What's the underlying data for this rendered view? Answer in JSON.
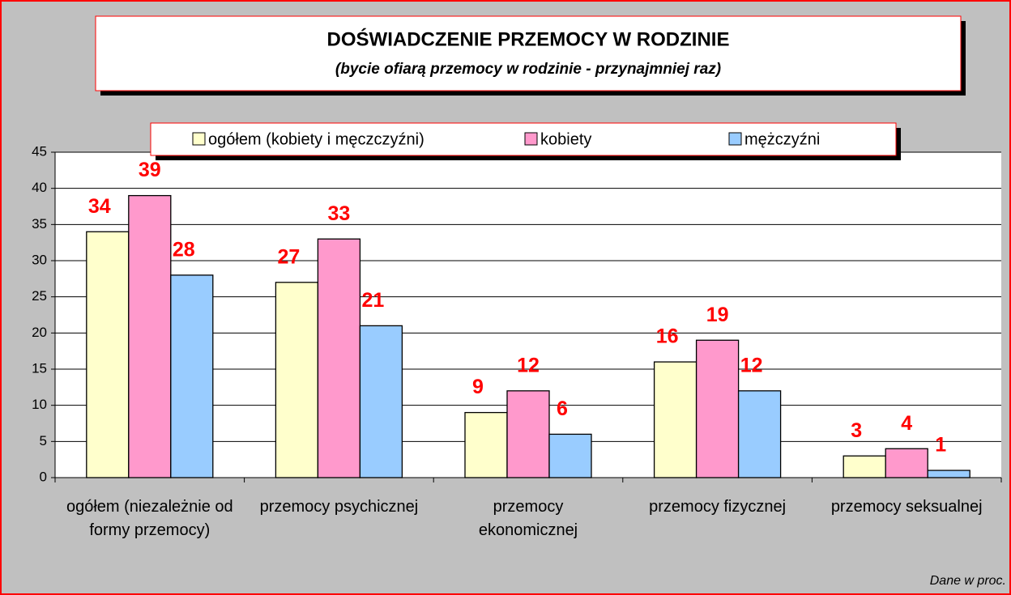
{
  "chart_data": {
    "type": "bar",
    "title": "DOŚWIADCZENIE PRZEMOCY W RODZINIE",
    "subtitle": "(bycie ofiarą przemocy w rodzinie - przynajmniej raz)",
    "categories": [
      "ogółem (niezależnie od formy przemocy)",
      "przemocy psychicznej",
      "przemocy ekonomicznej",
      "przemocy fizycznej",
      "przemocy seksualnej"
    ],
    "series": [
      {
        "name": "ogółem (kobiety i męczczyźni)",
        "color": "#ffffcc",
        "values": [
          34,
          27,
          9,
          16,
          3
        ]
      },
      {
        "name": "kobiety",
        "color": "#ff99cc",
        "values": [
          39,
          33,
          12,
          19,
          4
        ]
      },
      {
        "name": "mężczyźni",
        "color": "#99ccff",
        "values": [
          28,
          21,
          6,
          12,
          1
        ]
      }
    ],
    "ylim": [
      0,
      45
    ],
    "yticks": [
      0,
      5,
      10,
      15,
      20,
      25,
      30,
      35,
      40,
      45
    ],
    "grid": true,
    "legend": "top",
    "annotation": "Dane w proc."
  }
}
